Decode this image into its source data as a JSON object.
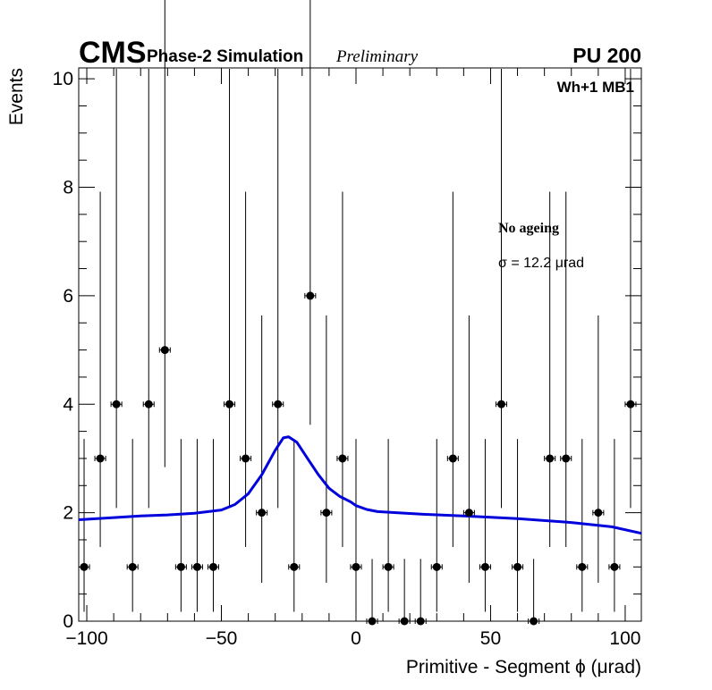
{
  "header": {
    "cms": "CMS",
    "subtitle": "Phase-2 Simulation",
    "status": "Preliminary",
    "pileup": "PU 200"
  },
  "panel_label": "Wh+1 MB1",
  "legend": {
    "title": "No ageing",
    "sigma": "σ = 12.2 μrad"
  },
  "chart_data": {
    "type": "scatter",
    "title": "",
    "xlabel": "Primitive - Segment ϕ (μrad)",
    "ylabel": "Events",
    "xlim": [
      -103,
      106
    ],
    "ylim": [
      0,
      10.2
    ],
    "xticks": [
      -100,
      -50,
      0,
      50,
      100
    ],
    "xtick_labels": [
      "−100",
      "−50",
      "0",
      "50",
      "100"
    ],
    "yticks": [
      0,
      2,
      4,
      6,
      8,
      10
    ],
    "ytick_labels": [
      "0",
      "2",
      "4",
      "6",
      "8",
      "10"
    ],
    "bin_half_width": 2,
    "series": [
      {
        "name": "data",
        "x": [
          -101,
          -95,
          -89,
          -83,
          -77,
          -71,
          -65,
          -59,
          -53,
          -47,
          -41,
          -35,
          -29,
          -23,
          -17,
          -11,
          -5,
          0,
          6,
          12,
          18,
          24,
          30,
          36,
          42,
          48,
          54,
          60,
          66,
          72,
          78,
          84,
          90,
          96,
          102
        ],
        "y": [
          1,
          3,
          4,
          1,
          4,
          5,
          1,
          1,
          1,
          4,
          3,
          2,
          4,
          1,
          6,
          2,
          3,
          1,
          0,
          1,
          0,
          0,
          1,
          3,
          2,
          1,
          4,
          1,
          0,
          3,
          3,
          1,
          2,
          1,
          4
        ]
      },
      {
        "name": "fit",
        "color": "#0000dd",
        "x": [
          -103,
          -90,
          -80,
          -70,
          -60,
          -50,
          -45,
          -40,
          -35,
          -30,
          -27,
          -25,
          -22,
          -18,
          -14,
          -10,
          -6,
          -2,
          0,
          4,
          8,
          15,
          25,
          40,
          60,
          80,
          95,
          106
        ],
        "y": [
          1.87,
          1.91,
          1.94,
          1.96,
          1.99,
          2.05,
          2.15,
          2.35,
          2.7,
          3.15,
          3.38,
          3.4,
          3.3,
          3.0,
          2.7,
          2.45,
          2.3,
          2.2,
          2.13,
          2.06,
          2.02,
          2.0,
          1.97,
          1.94,
          1.89,
          1.82,
          1.74,
          1.62
        ]
      }
    ]
  }
}
